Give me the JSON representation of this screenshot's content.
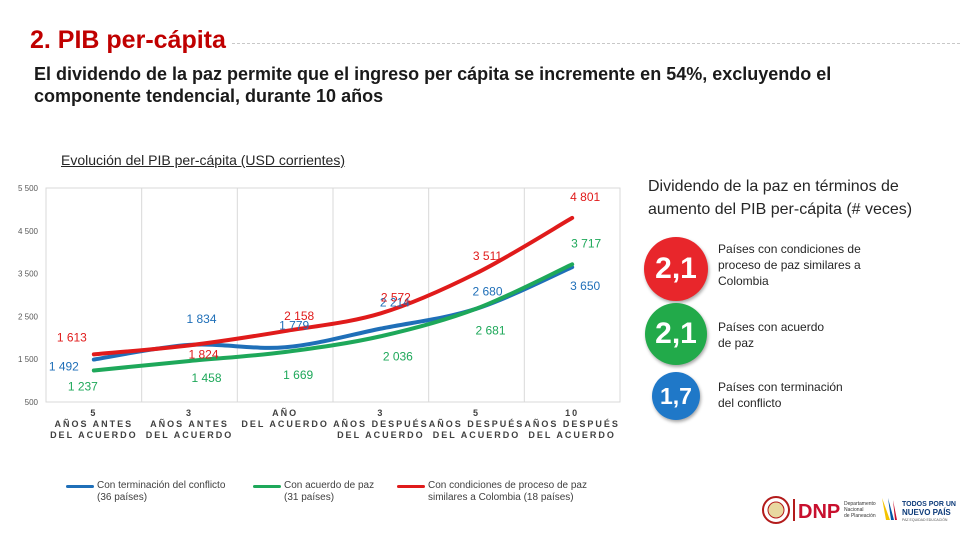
{
  "header": {
    "title": "2. PIB per-cápita",
    "subtitle": "El dividendo de la paz permite que el ingreso per cápita se incremente en 54%, excluyendo el componente tendencial, durante 10 años"
  },
  "chart_title": "Evolución del PIB per-cápita (USD corrientes)",
  "chart_data": {
    "type": "line",
    "title": "Evolución del PIB per-cápita (USD corrientes)",
    "categories": [
      [
        "5",
        "AÑOS ANTES",
        "DEL ACUERDO"
      ],
      [
        "3",
        "AÑOS ANTES",
        "DEL ACUERDO"
      ],
      [
        "AÑO",
        "DEL ACUERDO"
      ],
      [
        "3",
        "AÑOS DESPUÉS",
        "DEL ACUERDO"
      ],
      [
        "5",
        "AÑOS DESPUÉS",
        "DEL ACUERDO"
      ],
      [
        "10",
        "AÑOS DESPUÉS",
        "DEL ACUERDO"
      ]
    ],
    "ylim": [
      500,
      5500
    ],
    "yticks": [
      500,
      1500,
      2500,
      3500,
      4500,
      5500
    ],
    "ytick_labels": [
      "500",
      "1 500",
      "2 500",
      "3 500",
      "4 500",
      "5 500"
    ],
    "grid": "vertical",
    "legend_position": "bottom",
    "series": [
      {
        "name": "Con terminación del conflicto (36 países)",
        "color": "#1f6fb8",
        "values": [
          1492,
          1834,
          1779,
          2214,
          2680,
          3650
        ],
        "labels": [
          "1 492",
          "1 834",
          "1 779",
          "2 214",
          "2 680",
          "3 650"
        ]
      },
      {
        "name": "Con acuerdo de paz (31 países)",
        "color": "#1ea85a",
        "values": [
          1237,
          1458,
          1669,
          2036,
          2681,
          3717
        ],
        "labels": [
          "1 237",
          "1 458",
          "1 669",
          "2 036",
          "2 681",
          "3 717"
        ]
      },
      {
        "name": "Con condiciones de proceso de paz similares a Colombia (18 países)",
        "color": "#e01b1b",
        "values": [
          1613,
          1824,
          2158,
          2572,
          3511,
          4801
        ],
        "labels": [
          "1 613",
          "1 824",
          "2 158",
          "2 572",
          "3 511",
          "4 801"
        ]
      }
    ]
  },
  "legend": [
    {
      "line1": "Con terminación del conflicto",
      "line2": "(36 países)",
      "color": "#1f6fb8"
    },
    {
      "line1": "Con acuerdo de paz",
      "line2": "(31 países)",
      "color": "#1ea85a"
    },
    {
      "line1": "Con condiciones de proceso de paz",
      "line2": "similares a Colombia (18 países)",
      "color": "#e01b1b"
    }
  ],
  "dividend": {
    "title": "Dividendo de la paz en términos de aumento del PIB per-cápita (# veces)",
    "items": [
      {
        "value": "2,1",
        "color": "#e8262b",
        "line1": "Países con condiciones de",
        "line2": "proceso de paz similares a",
        "line3": "Colombia"
      },
      {
        "value": "2,1",
        "color": "#22aa4a",
        "line1": "Países con acuerdo",
        "line2": "de paz",
        "line3": ""
      },
      {
        "value": "1,7",
        "color": "#1f78c8",
        "line1": "Países con terminación",
        "line2": "del conflicto",
        "line3": ""
      }
    ]
  },
  "logos": {
    "dnp_text": "DNP",
    "dnp_sub1": "Departamento",
    "dnp_sub2": "Nacional",
    "dnp_sub3": "de Planeación",
    "todos_line1": "TODOS POR UN",
    "todos_line2": "NUEVO PAÍS",
    "todos_line3": "PAZ EQUIDAD EDUCACIÓN"
  }
}
